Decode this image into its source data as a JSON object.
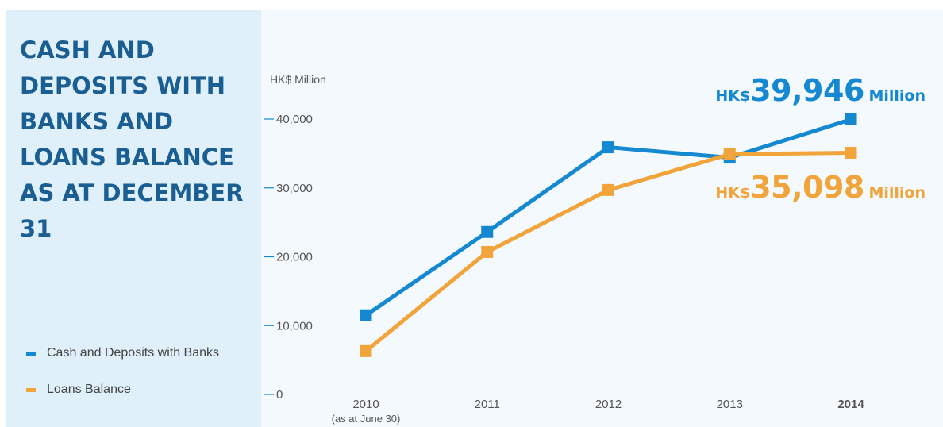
{
  "title": "CASH AND DEPOSITS WITH BANKS AND LOANS BALANCE AS AT DECEMBER 31",
  "colors": {
    "cash": "#1488d0",
    "loans": "#f1a43a",
    "title": "#1a5e92"
  },
  "legend": [
    {
      "label": "Cash and Deposits with Banks",
      "color": "#1488d0"
    },
    {
      "label": "Loans Balance",
      "color": "#f1a43a"
    }
  ],
  "callouts": {
    "cash": {
      "prefix": "HK$",
      "value": "39,946",
      "suffix": "Million"
    },
    "loans": {
      "prefix": "HK$",
      "value": "35,098",
      "suffix": "Million"
    }
  },
  "chart_data": {
    "type": "line",
    "title": "CASH AND DEPOSITS WITH BANKS AND LOANS BALANCE AS AT DECEMBER 31",
    "unit_label": "HK$ Million",
    "categories": [
      "2010",
      "2011",
      "2012",
      "2013",
      "2014"
    ],
    "category_notes": [
      "(as at June 30)",
      "",
      "",
      "",
      ""
    ],
    "y_ticks": [
      "0",
      "10,000",
      "20,000",
      "30,000",
      "40,000"
    ],
    "ylim": [
      0,
      40000
    ],
    "series": [
      {
        "name": "Cash and Deposits with Banks",
        "color": "#1488d0",
        "values": [
          11500,
          23600,
          35900,
          34400,
          39946
        ]
      },
      {
        "name": "Loans Balance",
        "color": "#f1a43a",
        "values": [
          6300,
          20700,
          29700,
          34900,
          35098
        ]
      }
    ],
    "grid": false,
    "legend_position": "bottom-left"
  }
}
